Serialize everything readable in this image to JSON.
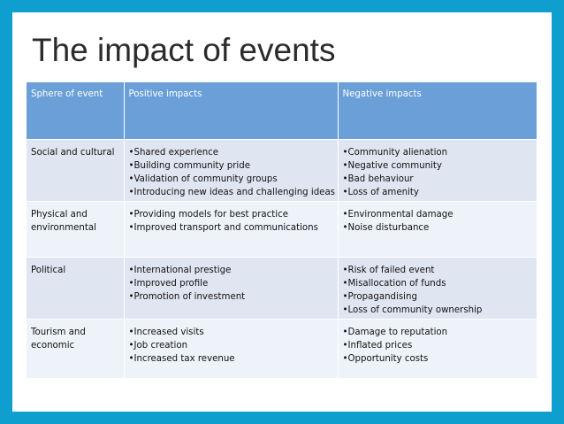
{
  "slide": {
    "title": "The impact of events"
  },
  "table": {
    "headers": [
      "Sphere of event",
      "Positive impacts",
      "Negative impacts"
    ],
    "rows": [
      {
        "sphere": [
          "Social and cultural"
        ],
        "positive": [
          "•Shared experience",
          "•Building community pride",
          "•Validation of community groups",
          "•Introducing new ideas and challenging ideas"
        ],
        "negative": [
          "•Community alienation",
          "•Negative community",
          "•Bad behaviour",
          "•Loss of amenity"
        ]
      },
      {
        "sphere": [
          "Physical and",
          "environmental"
        ],
        "positive": [
          "•Providing models for best practice",
          "•Improved transport and communications"
        ],
        "negative": [
          "•Environmental damage",
          "•Noise disturbance"
        ]
      },
      {
        "sphere": [
          "Political"
        ],
        "positive": [
          "•International prestige",
          "•Improved profile",
          "•Promotion of investment"
        ],
        "negative": [
          "•Risk of failed event",
          "•Misallocation of funds",
          "•Propagandising",
          "•Loss of community ownership"
        ]
      },
      {
        "sphere": [
          "Tourism and",
          "economic"
        ],
        "positive": [
          "•Increased visits",
          "•Job creation",
          "•Increased tax revenue"
        ],
        "negative": [
          "•Damage to reputation",
          "•Inflated prices",
          "•Opportunity costs"
        ]
      }
    ]
  },
  "colors": {
    "frame": "#0f9fcf",
    "header_bg": "#6aa0d7",
    "row_odd": "#dfe6f2",
    "row_even": "#eef3f9"
  }
}
